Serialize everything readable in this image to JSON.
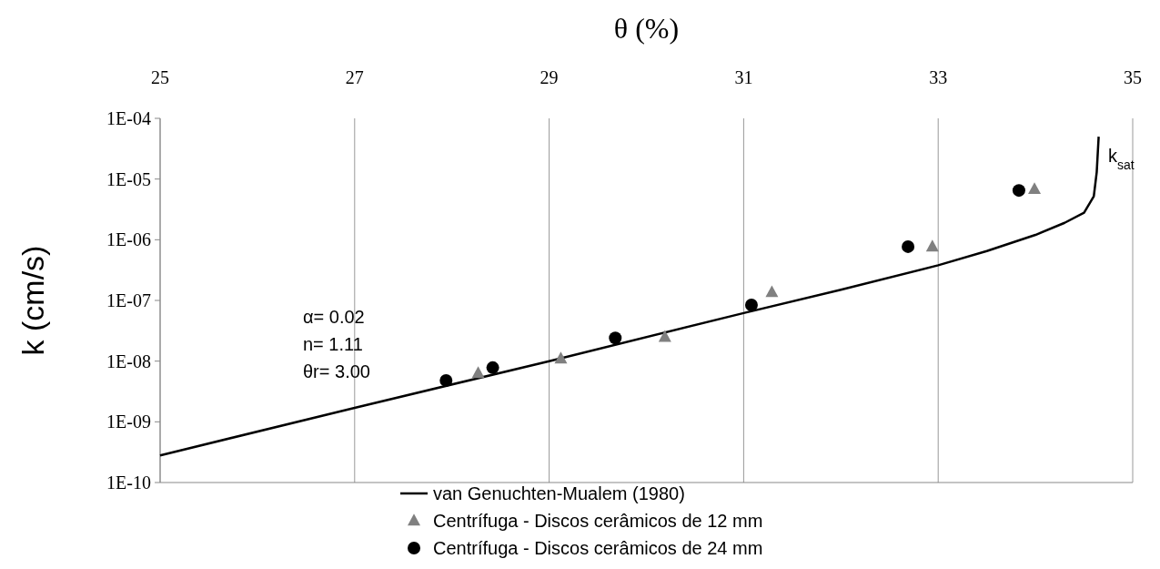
{
  "chart_data": {
    "type": "scatter",
    "xlabel": "θ (%)",
    "ylabel": "k (cm/s)",
    "xlim": [
      25,
      35
    ],
    "xticks": [
      25,
      27,
      29,
      31,
      33,
      35
    ],
    "ylim": [
      1e-10,
      0.0001
    ],
    "yticks": [
      {
        "value": 1e-10,
        "label": "1E-10"
      },
      {
        "value": 1e-09,
        "label": "1E-09"
      },
      {
        "value": 1e-08,
        "label": "1E-08"
      },
      {
        "value": 1e-07,
        "label": "1E-07"
      },
      {
        "value": 1e-06,
        "label": "1E-06"
      },
      {
        "value": 1e-05,
        "label": "1E-05"
      },
      {
        "value": 0.0001,
        "label": "1E-04"
      }
    ],
    "log": "y",
    "grid": "x",
    "legend": "bottom",
    "series": [
      {
        "name": "van Genuchten-Mualem (1980)",
        "type": "line",
        "marker": "none",
        "line_style": "solid",
        "color": "#000000",
        "x": [
          25,
          27,
          29,
          31,
          32,
          33,
          33.5,
          34,
          34.3,
          34.5,
          34.6,
          34.63,
          34.65
        ],
        "values": [
          2.8e-10,
          1.7e-09,
          1e-08,
          6.2e-08,
          1.5e-07,
          3.8e-07,
          6.5e-07,
          1.2e-06,
          1.9e-06,
          2.8e-06,
          5.2e-06,
          1.3e-05,
          5e-05
        ]
      },
      {
        "name": "Centrífuga - Discos cerâmicos de 12 mm",
        "marker": "triangle",
        "color": "#808080",
        "x": [
          28.27,
          29.12,
          30.19,
          31.29,
          32.94,
          33.99
        ],
        "values": [
          6.3e-09,
          1.1e-08,
          2.5e-08,
          1.36e-07,
          7.7e-07,
          6.8e-06
        ]
      },
      {
        "name": "Centrífuga - Discos cerâmicos de 24 mm",
        "marker": "circle",
        "color": "#000000",
        "x": [
          27.94,
          28.42,
          29.68,
          31.08,
          32.69,
          33.83
        ],
        "values": [
          4.8e-09,
          7.8e-09,
          2.4e-08,
          8.4e-08,
          7.7e-07,
          6.5e-06
        ]
      }
    ],
    "annotations": [
      "k$_{sat}$",
      "α= 0.02",
      "n= 1.11",
      "θr= 3.00"
    ]
  }
}
